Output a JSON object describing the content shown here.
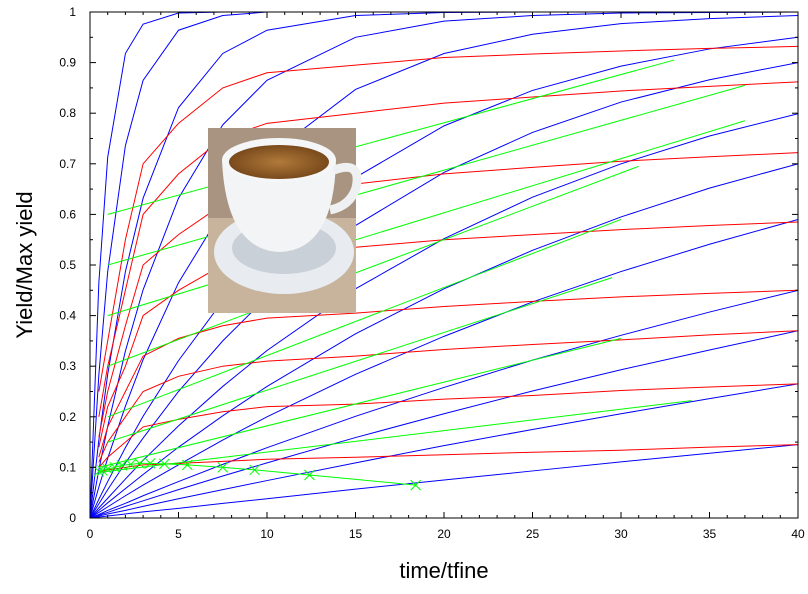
{
  "chart_data": {
    "type": "line",
    "xlabel": "time/tfine",
    "ylabel": "Yield/Max yield",
    "xlim": [
      0,
      40
    ],
    "ylim": [
      0,
      1
    ],
    "xticks": [
      0,
      5,
      10,
      15,
      20,
      25,
      30,
      35,
      40
    ],
    "yticks": [
      0,
      0.1,
      0.2,
      0.3,
      0.4,
      0.5,
      0.6,
      0.7,
      0.8,
      0.9,
      1
    ],
    "x": [
      0,
      0.5,
      1,
      2,
      3,
      5,
      7.5,
      10,
      15,
      20,
      25,
      30,
      35,
      40
    ],
    "series": [
      {
        "color": "#0000ff",
        "values": [
          0,
          0.002,
          0.004,
          0.008,
          0.012,
          0.019,
          0.029,
          0.038,
          0.057,
          0.075,
          0.093,
          0.111,
          0.128,
          0.145
        ]
      },
      {
        "color": "#0000ff",
        "values": [
          0,
          0.004,
          0.008,
          0.015,
          0.023,
          0.038,
          0.056,
          0.074,
          0.109,
          0.143,
          0.175,
          0.206,
          0.236,
          0.265
        ]
      },
      {
        "color": "#0000ff",
        "values": [
          0,
          0.006,
          0.011,
          0.023,
          0.034,
          0.056,
          0.083,
          0.109,
          0.159,
          0.206,
          0.251,
          0.293,
          0.332,
          0.37
        ]
      },
      {
        "color": "#0000ff",
        "values": [
          0,
          0.007,
          0.015,
          0.029,
          0.044,
          0.072,
          0.106,
          0.139,
          0.201,
          0.258,
          0.312,
          0.361,
          0.407,
          0.45
        ]
      },
      {
        "color": "#0000ff",
        "values": [
          0,
          0.011,
          0.022,
          0.044,
          0.065,
          0.105,
          0.154,
          0.2,
          0.284,
          0.359,
          0.427,
          0.487,
          0.541,
          0.59
        ]
      },
      {
        "color": "#0000ff",
        "values": [
          0,
          0.015,
          0.03,
          0.058,
          0.086,
          0.14,
          0.202,
          0.26,
          0.364,
          0.453,
          0.529,
          0.595,
          0.652,
          0.7
        ]
      },
      {
        "color": "#0000ff",
        "values": [
          0,
          0.02,
          0.039,
          0.077,
          0.114,
          0.182,
          0.26,
          0.331,
          0.453,
          0.552,
          0.634,
          0.7,
          0.755,
          0.799
        ]
      },
      {
        "color": "#0000ff",
        "values": [
          0,
          0.028,
          0.056,
          0.109,
          0.158,
          0.25,
          0.35,
          0.437,
          0.578,
          0.683,
          0.762,
          0.822,
          0.866,
          0.9
        ]
      },
      {
        "color": "#0000ff",
        "values": [
          0,
          0.037,
          0.072,
          0.139,
          0.201,
          0.311,
          0.429,
          0.526,
          0.673,
          0.775,
          0.845,
          0.893,
          0.927,
          0.95
        ]
      },
      {
        "color": "#0000ff",
        "values": [
          0,
          0.061,
          0.118,
          0.221,
          0.313,
          0.465,
          0.608,
          0.714,
          0.847,
          0.918,
          0.956,
          0.977,
          0.987,
          0.993
        ]
      },
      {
        "color": "#0000ff",
        "values": [
          0,
          0.095,
          0.181,
          0.33,
          0.451,
          0.632,
          0.777,
          0.865,
          0.95,
          0.982,
          0.993,
          0.998,
          0.999,
          1
        ]
      },
      {
        "color": "#0000ff",
        "values": [
          0,
          0.154,
          0.284,
          0.487,
          0.632,
          0.811,
          0.918,
          0.964,
          0.993,
          0.999,
          1,
          1,
          1,
          1
        ]
      },
      {
        "color": "#0000ff",
        "values": [
          0,
          0.283,
          0.487,
          0.736,
          0.865,
          0.964,
          0.993,
          1,
          1,
          1,
          1,
          1,
          1,
          1
        ]
      },
      {
        "color": "#0000ff",
        "values": [
          0,
          0.465,
          0.713,
          0.918,
          0.976,
          0.998,
          1,
          1,
          1,
          1,
          1,
          1,
          1,
          1
        ]
      },
      {
        "color": "#ff0000",
        "values": [
          null,
          0.09,
          0.095,
          0.1,
          0.105,
          0.108,
          0.112,
          0.116,
          0.12,
          0.125,
          0.13,
          0.134,
          0.14,
          0.145
        ]
      },
      {
        "color": "#ff0000",
        "values": [
          null,
          0.1,
          0.12,
          0.15,
          0.18,
          0.195,
          0.21,
          0.22,
          0.225,
          0.235,
          0.242,
          0.252,
          0.259,
          0.265
        ]
      },
      {
        "color": "#ff0000",
        "values": [
          null,
          0.11,
          0.15,
          0.2,
          0.25,
          0.28,
          0.3,
          0.31,
          0.32,
          0.333,
          0.343,
          0.352,
          0.362,
          0.37
        ]
      },
      {
        "color": "#ff0000",
        "values": [
          null,
          0.12,
          0.18,
          0.25,
          0.32,
          0.355,
          0.38,
          0.395,
          0.405,
          0.418,
          0.428,
          0.437,
          0.444,
          0.45
        ]
      },
      {
        "color": "#ff0000",
        "values": [
          null,
          0.14,
          0.22,
          0.3,
          0.4,
          0.45,
          0.5,
          0.52,
          0.535,
          0.55,
          0.56,
          0.57,
          0.578,
          0.585
        ]
      },
      {
        "color": "#ff0000",
        "values": [
          null,
          0.16,
          0.25,
          0.38,
          0.5,
          0.56,
          0.62,
          0.645,
          0.66,
          0.68,
          0.693,
          0.705,
          0.714,
          0.722
        ]
      },
      {
        "color": "#ff0000",
        "values": [
          null,
          0.2,
          0.3,
          0.45,
          0.6,
          0.68,
          0.75,
          0.78,
          0.8,
          0.82,
          0.832,
          0.844,
          0.853,
          0.862
        ]
      },
      {
        "color": "#ff0000",
        "values": [
          null,
          0.25,
          0.35,
          0.55,
          0.7,
          0.78,
          0.85,
          0.88,
          0.895,
          0.91,
          0.917,
          0.923,
          0.928,
          0.932
        ]
      },
      {
        "color": "#00ff00",
        "x": [
          0.5,
          34
        ],
        "values": [
          0.09,
          0.232
        ]
      },
      {
        "color": "#00ff00",
        "x": [
          0.5,
          30
        ],
        "values": [
          0.1,
          0.355
        ]
      },
      {
        "color": "#00ff00",
        "x": [
          1,
          29.5
        ],
        "values": [
          0.15,
          0.475
        ]
      },
      {
        "color": "#00ff00",
        "x": [
          1,
          30
        ],
        "values": [
          0.2,
          0.59
        ]
      },
      {
        "color": "#00ff00",
        "x": [
          1,
          31
        ],
        "values": [
          0.3,
          0.695
        ]
      },
      {
        "color": "#00ff00",
        "x": [
          1,
          37
        ],
        "values": [
          0.4,
          0.785
        ]
      },
      {
        "color": "#00ff00",
        "x": [
          1,
          37
        ],
        "values": [
          0.5,
          0.855
        ]
      },
      {
        "color": "#00ff00",
        "x": [
          1,
          33
        ],
        "values": [
          0.6,
          0.905
        ]
      },
      {
        "color": "#00ff00",
        "marker": "x",
        "x": [
          0.5,
          0.7,
          1,
          1.4,
          1.8,
          2.3,
          2.8,
          3.4,
          4.2,
          5.5,
          7.5,
          9.3,
          12.4,
          18.4
        ],
        "values": [
          0.092,
          0.094,
          0.097,
          0.1,
          0.104,
          0.106,
          0.108,
          0.108,
          0.107,
          0.105,
          0.1,
          0.095,
          0.085,
          0.065
        ]
      }
    ]
  }
}
